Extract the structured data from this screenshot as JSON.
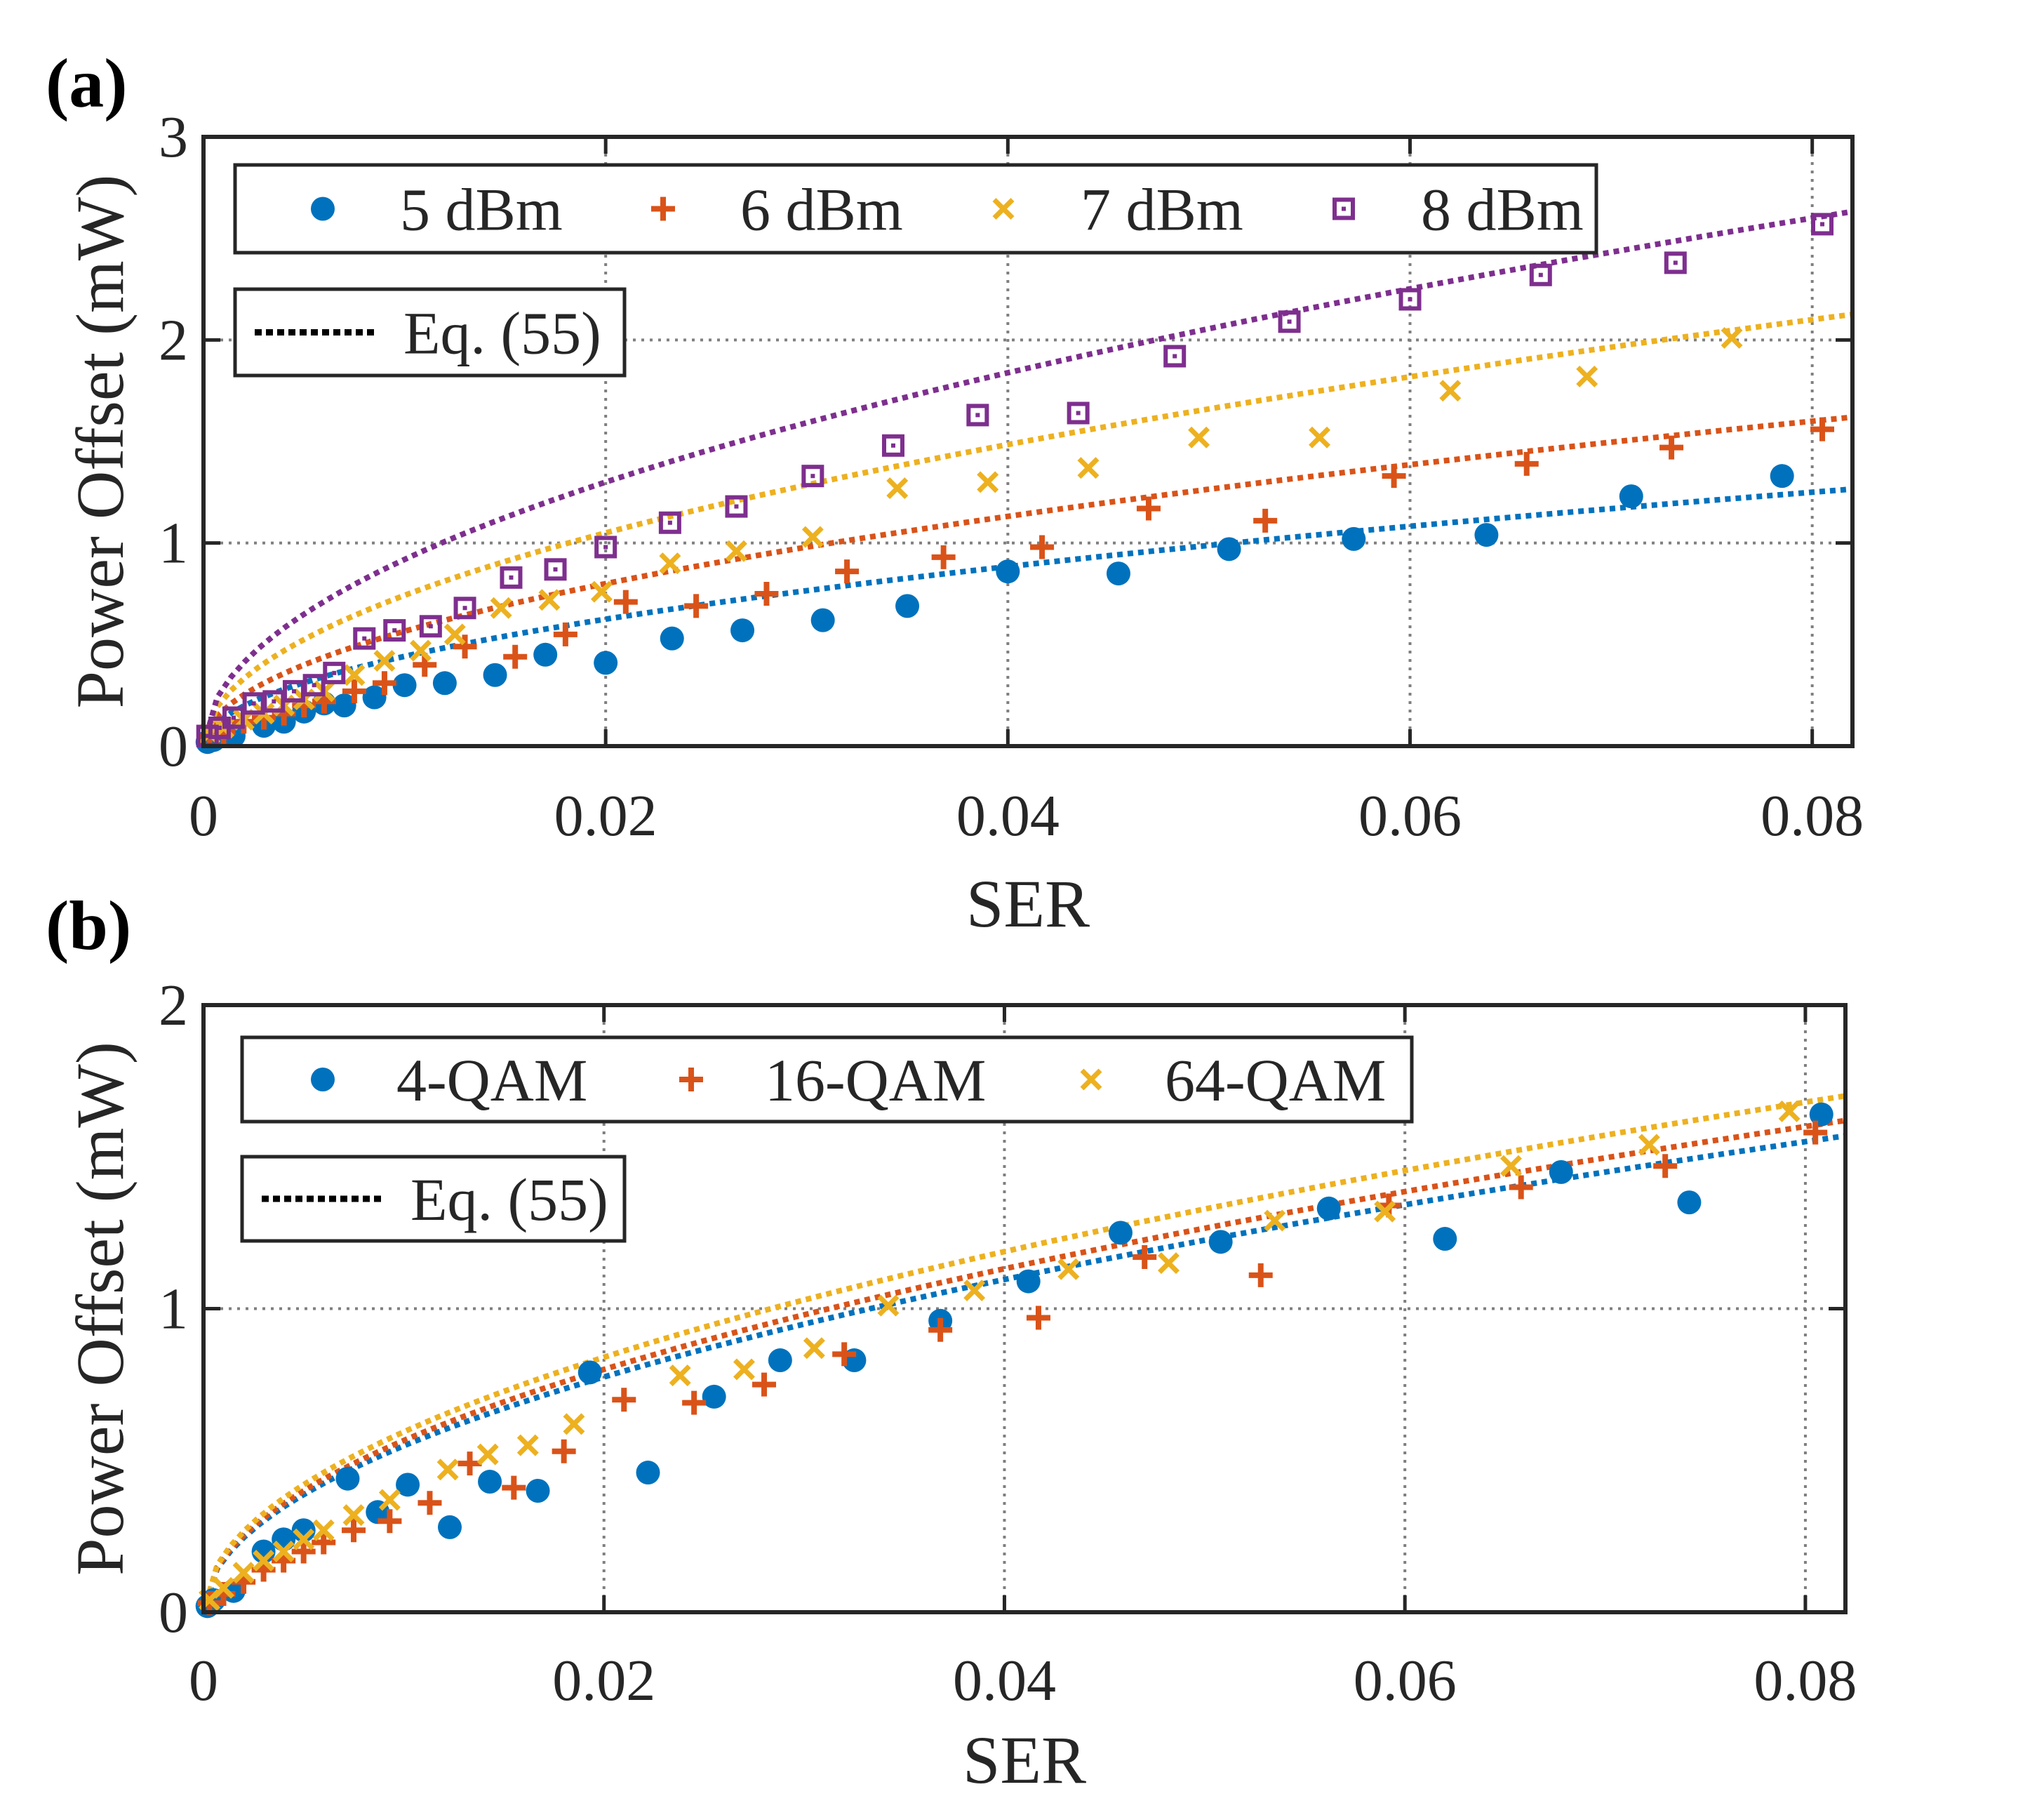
{
  "panel_labels": [
    "(a)",
    "(b)"
  ],
  "colors": {
    "blue": "#0072BD",
    "orange": "#D95319",
    "yellow": "#EDB120",
    "purple": "#7E2F8E",
    "axis": "#262626",
    "grid": "#7f7f7f",
    "fit_line": "#000000"
  },
  "chart_data": [
    {
      "type": "scatter",
      "panel": "(a)",
      "title": "",
      "xlabel": "SER",
      "ylabel": "Power Offset (mW)",
      "xlim": [
        0,
        0.082
      ],
      "ylim": [
        0,
        3
      ],
      "xticks": [
        0,
        0.02,
        0.04,
        0.06,
        0.08
      ],
      "xtick_labels": [
        "0",
        "0.02",
        "0.04",
        "0.06",
        "0.08"
      ],
      "yticks": [
        0,
        1,
        2,
        3
      ],
      "ytick_labels": [
        "0",
        "1",
        "2",
        "3"
      ],
      "grid": true,
      "legend_position": "top",
      "fit_legend_label": "Eq. (55)",
      "series": [
        {
          "name": "5 dBm",
          "marker": "dot",
          "color": "#0072BD",
          "fit_scale": 1.25,
          "x": [
            0.0002,
            0.0005,
            0.0015,
            0.003,
            0.004,
            0.005,
            0.006,
            0.007,
            0.0085,
            0.01,
            0.012,
            0.0145,
            0.017,
            0.02,
            0.0233,
            0.0268,
            0.0308,
            0.035,
            0.04,
            0.0455,
            0.051,
            0.0572,
            0.0638,
            0.071,
            0.0785
          ],
          "y": [
            0.02,
            0.03,
            0.05,
            0.1,
            0.12,
            0.17,
            0.21,
            0.2,
            0.24,
            0.3,
            0.31,
            0.35,
            0.45,
            0.41,
            0.53,
            0.57,
            0.62,
            0.69,
            0.86,
            0.85,
            0.97,
            1.02,
            1.04,
            1.23,
            1.33
          ]
        },
        {
          "name": "6 dBm",
          "marker": "plus",
          "color": "#D95319",
          "fit_scale": 1.6,
          "x": [
            0.0003,
            0.001,
            0.002,
            0.003,
            0.004,
            0.005,
            0.006,
            0.0075,
            0.009,
            0.011,
            0.013,
            0.0155,
            0.018,
            0.021,
            0.0245,
            0.028,
            0.032,
            0.0368,
            0.0417,
            0.047,
            0.0528,
            0.0592,
            0.0658,
            0.073,
            0.0805
          ],
          "y": [
            0.05,
            0.07,
            0.12,
            0.14,
            0.16,
            0.2,
            0.22,
            0.27,
            0.31,
            0.4,
            0.49,
            0.44,
            0.55,
            0.71,
            0.69,
            0.75,
            0.86,
            0.93,
            0.98,
            1.17,
            1.11,
            1.33,
            1.39,
            1.47,
            1.56
          ]
        },
        {
          "name": "7 dBm",
          "marker": "x",
          "color": "#EDB120",
          "fit_scale": 2.1,
          "x": [
            0.0003,
            0.001,
            0.002,
            0.003,
            0.004,
            0.005,
            0.006,
            0.0075,
            0.009,
            0.0108,
            0.0125,
            0.0148,
            0.0172,
            0.0198,
            0.0232,
            0.0265,
            0.0303,
            0.0345,
            0.039,
            0.044,
            0.0495,
            0.0555,
            0.062,
            0.0688,
            0.076
          ],
          "y": [
            0.06,
            0.09,
            0.13,
            0.16,
            0.2,
            0.23,
            0.27,
            0.35,
            0.42,
            0.47,
            0.55,
            0.68,
            0.72,
            0.76,
            0.9,
            0.96,
            1.03,
            1.27,
            1.3,
            1.37,
            1.52,
            1.52,
            1.75,
            1.82,
            2.01
          ]
        },
        {
          "name": "8 dBm",
          "marker": "square",
          "color": "#7E2F8E",
          "fit_scale": 2.6,
          "x": [
            0.0002,
            0.0008,
            0.0015,
            0.0025,
            0.0035,
            0.0045,
            0.0055,
            0.0065,
            0.008,
            0.0095,
            0.0113,
            0.013,
            0.0153,
            0.0175,
            0.02,
            0.0232,
            0.0265,
            0.0303,
            0.0343,
            0.0385,
            0.0435,
            0.0483,
            0.054,
            0.06,
            0.0665,
            0.0732,
            0.0805
          ],
          "y": [
            0.05,
            0.09,
            0.14,
            0.21,
            0.22,
            0.27,
            0.3,
            0.36,
            0.53,
            0.57,
            0.59,
            0.68,
            0.83,
            0.87,
            0.98,
            1.1,
            1.18,
            1.33,
            1.48,
            1.63,
            1.64,
            1.92,
            2.09,
            2.2,
            2.32,
            2.38,
            2.57
          ]
        }
      ]
    },
    {
      "type": "scatter",
      "panel": "(b)",
      "title": "",
      "xlabel": "SER",
      "ylabel": "Power Offset (mW)",
      "xlim": [
        0,
        0.082
      ],
      "ylim": [
        0,
        2
      ],
      "xticks": [
        0,
        0.02,
        0.04,
        0.06,
        0.08
      ],
      "xtick_labels": [
        "0",
        "0.02",
        "0.04",
        "0.06",
        "0.08"
      ],
      "yticks": [
        0,
        1,
        2
      ],
      "ytick_labels": [
        "0",
        "1",
        "2"
      ],
      "grid": true,
      "legend_position": "top",
      "fit_legend_label": "Eq. (55)",
      "series": [
        {
          "name": "4-QAM",
          "marker": "dot",
          "color": "#0072BD",
          "fit_scale": 1.55,
          "x": [
            0.0002,
            0.0005,
            0.0015,
            0.003,
            0.004,
            0.005,
            0.0072,
            0.0087,
            0.0102,
            0.0123,
            0.0143,
            0.0167,
            0.0193,
            0.0222,
            0.0255,
            0.0288,
            0.0325,
            0.0368,
            0.0412,
            0.0458,
            0.0508,
            0.0562,
            0.062,
            0.0678,
            0.0742,
            0.0808
          ],
          "y": [
            0.02,
            0.04,
            0.07,
            0.2,
            0.24,
            0.27,
            0.44,
            0.33,
            0.42,
            0.28,
            0.43,
            0.4,
            0.79,
            0.46,
            0.71,
            0.83,
            0.83,
            0.96,
            1.09,
            1.25,
            1.22,
            1.33,
            1.23,
            1.45,
            1.35,
            1.64
          ]
        },
        {
          "name": "16-QAM",
          "marker": "plus",
          "color": "#D95319",
          "fit_scale": 1.6,
          "x": [
            0.0003,
            0.001,
            0.002,
            0.003,
            0.004,
            0.005,
            0.006,
            0.0075,
            0.0093,
            0.0113,
            0.0133,
            0.0155,
            0.018,
            0.021,
            0.0245,
            0.028,
            0.032,
            0.0368,
            0.0417,
            0.047,
            0.0528,
            0.0592,
            0.0658,
            0.073,
            0.0805
          ],
          "y": [
            0.03,
            0.06,
            0.1,
            0.14,
            0.17,
            0.2,
            0.23,
            0.27,
            0.3,
            0.36,
            0.49,
            0.41,
            0.53,
            0.7,
            0.69,
            0.75,
            0.85,
            0.93,
            0.97,
            1.17,
            1.11,
            1.34,
            1.4,
            1.47,
            1.58
          ]
        },
        {
          "name": "64-QAM",
          "marker": "x",
          "color": "#EDB120",
          "fit_scale": 1.68,
          "x": [
            0.0003,
            0.001,
            0.002,
            0.003,
            0.004,
            0.005,
            0.006,
            0.0075,
            0.0093,
            0.0122,
            0.0142,
            0.0162,
            0.0185,
            0.0238,
            0.027,
            0.0305,
            0.0342,
            0.0385,
            0.0432,
            0.0482,
            0.0535,
            0.059,
            0.0653,
            0.0722,
            0.0792
          ],
          "y": [
            0.04,
            0.08,
            0.13,
            0.17,
            0.2,
            0.24,
            0.27,
            0.32,
            0.37,
            0.47,
            0.52,
            0.55,
            0.62,
            0.78,
            0.8,
            0.87,
            1.01,
            1.06,
            1.13,
            1.15,
            1.29,
            1.32,
            1.47,
            1.54,
            1.65
          ]
        }
      ]
    }
  ]
}
